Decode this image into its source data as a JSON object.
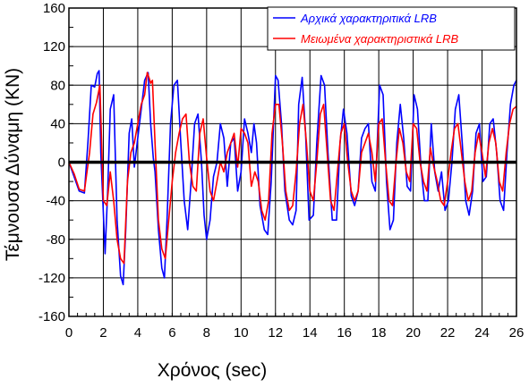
{
  "chart_data": {
    "type": "line",
    "xlabel": "Χρόνος (sec)",
    "ylabel": "Τέμνουσα Δύναμη (KN)",
    "xlim": [
      0,
      26
    ],
    "ylim": [
      -160,
      160
    ],
    "xticks": [
      0,
      2,
      4,
      6,
      8,
      10,
      12,
      14,
      16,
      18,
      20,
      22,
      24,
      26
    ],
    "yticks": [
      160,
      120,
      80,
      40,
      0,
      -40,
      -80,
      -120,
      -160
    ],
    "x_minor_step": 0.5,
    "y_minor_step": 20,
    "grid": true,
    "zero_line": true,
    "legend_position": "top-right",
    "series": [
      {
        "name": "Αρχικά χαρακτηριτικά LRB",
        "color": "#0000ff",
        "points": [
          [
            0,
            0
          ],
          [
            0.3,
            -15
          ],
          [
            0.6,
            -30
          ],
          [
            0.9,
            -32
          ],
          [
            1.1,
            20
          ],
          [
            1.3,
            80
          ],
          [
            1.5,
            78
          ],
          [
            1.65,
            92
          ],
          [
            1.75,
            95
          ],
          [
            1.85,
            10
          ],
          [
            2.1,
            -95
          ],
          [
            2.25,
            -30
          ],
          [
            2.4,
            55
          ],
          [
            2.6,
            70
          ],
          [
            2.8,
            -60
          ],
          [
            3.0,
            -118
          ],
          [
            3.15,
            -127
          ],
          [
            3.3,
            -70
          ],
          [
            3.5,
            30
          ],
          [
            3.65,
            45
          ],
          [
            3.8,
            -5
          ],
          [
            4.0,
            25
          ],
          [
            4.2,
            55
          ],
          [
            4.4,
            85
          ],
          [
            4.6,
            93
          ],
          [
            4.75,
            40
          ],
          [
            4.9,
            5
          ],
          [
            5.0,
            -10
          ],
          [
            5.2,
            -70
          ],
          [
            5.4,
            -110
          ],
          [
            5.55,
            -120
          ],
          [
            5.7,
            -60
          ],
          [
            5.9,
            40
          ],
          [
            6.1,
            80
          ],
          [
            6.3,
            85
          ],
          [
            6.5,
            20
          ],
          [
            6.7,
            -40
          ],
          [
            6.9,
            -70
          ],
          [
            7.1,
            -20
          ],
          [
            7.3,
            40
          ],
          [
            7.5,
            50
          ],
          [
            7.7,
            0
          ],
          [
            7.85,
            -55
          ],
          [
            8.0,
            -80
          ],
          [
            8.2,
            -60
          ],
          [
            8.4,
            -15
          ],
          [
            8.6,
            0
          ],
          [
            8.8,
            40
          ],
          [
            9.0,
            25
          ],
          [
            9.2,
            -25
          ],
          [
            9.4,
            20
          ],
          [
            9.6,
            25
          ],
          [
            9.8,
            -30
          ],
          [
            10.0,
            -10
          ],
          [
            10.2,
            45
          ],
          [
            10.4,
            30
          ],
          [
            10.6,
            10
          ],
          [
            10.75,
            40
          ],
          [
            10.9,
            20
          ],
          [
            11.1,
            -45
          ],
          [
            11.35,
            -70
          ],
          [
            11.55,
            -75
          ],
          [
            11.75,
            -20
          ],
          [
            12.0,
            90
          ],
          [
            12.15,
            85
          ],
          [
            12.35,
            40
          ],
          [
            12.55,
            -30
          ],
          [
            12.8,
            -60
          ],
          [
            13.0,
            -65
          ],
          [
            13.2,
            -50
          ],
          [
            13.35,
            60
          ],
          [
            13.55,
            88
          ],
          [
            13.75,
            30
          ],
          [
            13.95,
            -60
          ],
          [
            14.2,
            -55
          ],
          [
            14.4,
            20
          ],
          [
            14.65,
            90
          ],
          [
            14.85,
            80
          ],
          [
            15.05,
            10
          ],
          [
            15.3,
            -60
          ],
          [
            15.55,
            -60
          ],
          [
            15.75,
            20
          ],
          [
            15.95,
            55
          ],
          [
            16.15,
            30
          ],
          [
            16.4,
            -35
          ],
          [
            16.6,
            -45
          ],
          [
            16.8,
            -30
          ],
          [
            17.0,
            25
          ],
          [
            17.2,
            35
          ],
          [
            17.4,
            40
          ],
          [
            17.6,
            -20
          ],
          [
            17.8,
            -30
          ],
          [
            18.05,
            80
          ],
          [
            18.25,
            70
          ],
          [
            18.45,
            -20
          ],
          [
            18.65,
            -70
          ],
          [
            18.85,
            -60
          ],
          [
            19.05,
            20
          ],
          [
            19.25,
            60
          ],
          [
            19.45,
            25
          ],
          [
            19.65,
            -25
          ],
          [
            19.85,
            -30
          ],
          [
            20.05,
            70
          ],
          [
            20.25,
            55
          ],
          [
            20.45,
            -5
          ],
          [
            20.65,
            -40
          ],
          [
            20.85,
            -40
          ],
          [
            21.05,
            40
          ],
          [
            21.25,
            -10
          ],
          [
            21.45,
            -30
          ],
          [
            21.65,
            -10
          ],
          [
            21.85,
            -50
          ],
          [
            22.05,
            -40
          ],
          [
            22.25,
            0
          ],
          [
            22.45,
            55
          ],
          [
            22.65,
            70
          ],
          [
            22.85,
            20
          ],
          [
            23.05,
            -40
          ],
          [
            23.25,
            -55
          ],
          [
            23.45,
            -30
          ],
          [
            23.65,
            30
          ],
          [
            23.85,
            40
          ],
          [
            24.05,
            -20
          ],
          [
            24.25,
            -15
          ],
          [
            24.45,
            40
          ],
          [
            24.65,
            45
          ],
          [
            24.85,
            10
          ],
          [
            25.05,
            -40
          ],
          [
            25.25,
            -50
          ],
          [
            25.45,
            10
          ],
          [
            25.65,
            60
          ],
          [
            25.85,
            80
          ],
          [
            26.0,
            85
          ]
        ]
      },
      {
        "name": "Μειωμένα χαρακτηριστικά LRB",
        "color": "#ff0000",
        "points": [
          [
            0,
            0
          ],
          [
            0.3,
            -12
          ],
          [
            0.6,
            -28
          ],
          [
            0.9,
            -30
          ],
          [
            1.2,
            10
          ],
          [
            1.4,
            50
          ],
          [
            1.6,
            62
          ],
          [
            1.8,
            80
          ],
          [
            2.0,
            -40
          ],
          [
            2.2,
            -45
          ],
          [
            2.4,
            -10
          ],
          [
            2.6,
            -40
          ],
          [
            2.8,
            -80
          ],
          [
            3.0,
            -100
          ],
          [
            3.2,
            -105
          ],
          [
            3.4,
            -20
          ],
          [
            3.6,
            10
          ],
          [
            3.8,
            20
          ],
          [
            4.0,
            40
          ],
          [
            4.2,
            60
          ],
          [
            4.4,
            70
          ],
          [
            4.55,
            93
          ],
          [
            4.65,
            88
          ],
          [
            4.75,
            82
          ],
          [
            4.85,
            85
          ],
          [
            5.0,
            20
          ],
          [
            5.2,
            -60
          ],
          [
            5.4,
            -90
          ],
          [
            5.6,
            -100
          ],
          [
            5.8,
            -60
          ],
          [
            6.0,
            -20
          ],
          [
            6.2,
            10
          ],
          [
            6.4,
            30
          ],
          [
            6.6,
            45
          ],
          [
            6.8,
            50
          ],
          [
            7.0,
            0
          ],
          [
            7.2,
            -25
          ],
          [
            7.4,
            -30
          ],
          [
            7.6,
            30
          ],
          [
            7.8,
            45
          ],
          [
            8.0,
            5
          ],
          [
            8.2,
            -30
          ],
          [
            8.4,
            -40
          ],
          [
            8.6,
            -20
          ],
          [
            8.8,
            0
          ],
          [
            9.0,
            -10
          ],
          [
            9.2,
            10
          ],
          [
            9.4,
            20
          ],
          [
            9.6,
            30
          ],
          [
            9.8,
            -5
          ],
          [
            10.0,
            35
          ],
          [
            10.2,
            30
          ],
          [
            10.4,
            20
          ],
          [
            10.6,
            -25
          ],
          [
            10.8,
            -10
          ],
          [
            11.0,
            -20
          ],
          [
            11.2,
            -50
          ],
          [
            11.4,
            -60
          ],
          [
            11.6,
            -40
          ],
          [
            11.8,
            30
          ],
          [
            12.0,
            60
          ],
          [
            12.2,
            60
          ],
          [
            12.4,
            20
          ],
          [
            12.6,
            -30
          ],
          [
            12.8,
            -50
          ],
          [
            13.0,
            -45
          ],
          [
            13.2,
            -10
          ],
          [
            13.4,
            40
          ],
          [
            13.6,
            60
          ],
          [
            13.8,
            20
          ],
          [
            14.0,
            -30
          ],
          [
            14.2,
            -40
          ],
          [
            14.4,
            0
          ],
          [
            14.6,
            50
          ],
          [
            14.8,
            60
          ],
          [
            15.0,
            10
          ],
          [
            15.2,
            -40
          ],
          [
            15.4,
            -50
          ],
          [
            15.6,
            -10
          ],
          [
            15.8,
            30
          ],
          [
            16.0,
            40
          ],
          [
            16.2,
            0
          ],
          [
            16.4,
            -30
          ],
          [
            16.6,
            -40
          ],
          [
            16.8,
            -30
          ],
          [
            17.0,
            10
          ],
          [
            17.2,
            20
          ],
          [
            17.4,
            30
          ],
          [
            17.6,
            10
          ],
          [
            17.8,
            -20
          ],
          [
            18.0,
            40
          ],
          [
            18.2,
            45
          ],
          [
            18.4,
            0
          ],
          [
            18.6,
            -40
          ],
          [
            18.8,
            -45
          ],
          [
            19.0,
            0
          ],
          [
            19.2,
            35
          ],
          [
            19.4,
            20
          ],
          [
            19.6,
            -10
          ],
          [
            19.8,
            -20
          ],
          [
            20.0,
            40
          ],
          [
            20.2,
            35
          ],
          [
            20.4,
            0
          ],
          [
            20.6,
            -20
          ],
          [
            20.8,
            -30
          ],
          [
            21.0,
            15
          ],
          [
            21.2,
            -5
          ],
          [
            21.4,
            -20
          ],
          [
            21.6,
            -40
          ],
          [
            21.8,
            -45
          ],
          [
            22.0,
            -20
          ],
          [
            22.2,
            10
          ],
          [
            22.4,
            35
          ],
          [
            22.6,
            40
          ],
          [
            22.8,
            10
          ],
          [
            23.0,
            -20
          ],
          [
            23.2,
            -40
          ],
          [
            23.4,
            -30
          ],
          [
            23.6,
            10
          ],
          [
            23.8,
            30
          ],
          [
            24.0,
            10
          ],
          [
            24.2,
            -15
          ],
          [
            24.4,
            20
          ],
          [
            24.6,
            35
          ],
          [
            24.8,
            20
          ],
          [
            25.0,
            -20
          ],
          [
            25.2,
            -30
          ],
          [
            25.4,
            10
          ],
          [
            25.6,
            40
          ],
          [
            25.8,
            55
          ],
          [
            26.0,
            58
          ]
        ]
      }
    ]
  }
}
